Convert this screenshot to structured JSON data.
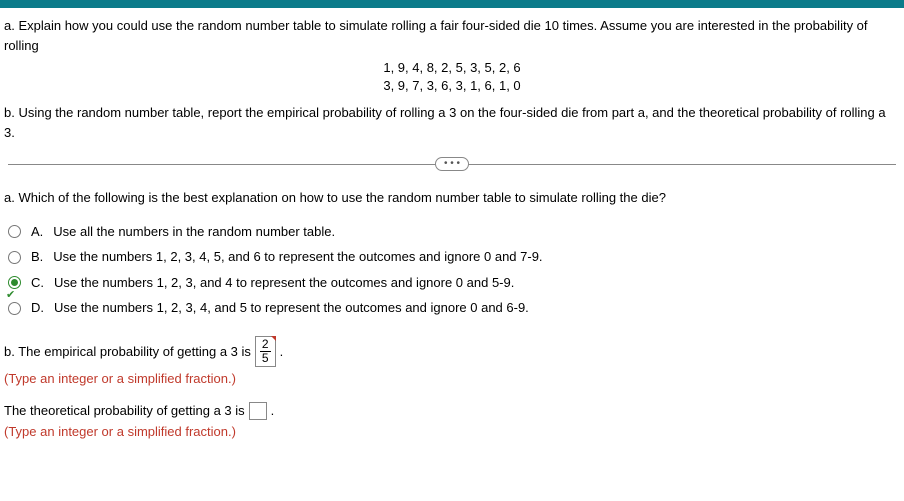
{
  "colors": {
    "topbar": "#0b7b8a",
    "hint": "#c0392b",
    "selected": "#2e8b2e",
    "text": "#000000",
    "divider": "#888888"
  },
  "qa": "a. Explain how you could use the random number table to simulate rolling a fair four-sided die 10 times. Assume you are interested in the probability of rolling",
  "numbers": {
    "row1": "1, 9, 4, 8, 2, 5, 3, 5, 2, 6",
    "row2": "3, 9, 7, 3, 6, 3, 1, 6, 1, 0"
  },
  "qb": "b. Using the random number table, report the empirical probability of rolling a 3 on the four-sided die from part a, and the theoretical probability of rolling a 3.",
  "ellipsis": "• • •",
  "subA": "a. Which of the following is the best explanation on how to use the random number table to simulate rolling the die?",
  "options": [
    {
      "letter": "A.",
      "text": "Use all the numbers in the random number table.",
      "selected": false
    },
    {
      "letter": "B.",
      "text": "Use the numbers 1, 2, 3, 4, 5, and 6 to represent the outcomes and ignore 0 and 7-9.",
      "selected": false
    },
    {
      "letter": "C.",
      "text": "Use the numbers 1, 2, 3, and 4 to represent the outcomes and ignore 0 and 5-9.",
      "selected": true
    },
    {
      "letter": "D.",
      "text": "Use the numbers 1, 2, 3, 4, and 5 to represent the outcomes and ignore 0 and 6-9.",
      "selected": false
    }
  ],
  "partb2": {
    "prefix": "b. The empirical probability of getting a 3 is",
    "frac_top": "2",
    "frac_bot": "5",
    "suffix": "."
  },
  "hint1": "(Type an integer or a simplified fraction.)",
  "theo": {
    "prefix": "The theoretical probability of getting a 3 is",
    "suffix": "."
  },
  "hint2": "(Type an integer or a simplified fraction.)"
}
